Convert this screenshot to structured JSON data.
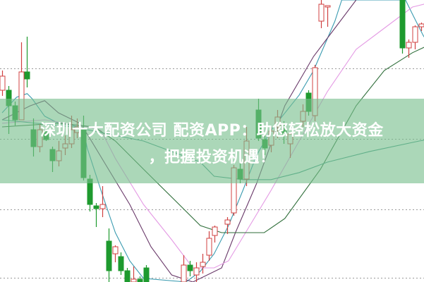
{
  "banner": {
    "line1": "深圳十大配资公司 配资APP：助您轻松放大资金",
    "line2": "，把握投资机遇！",
    "color": "#78be8c"
  },
  "chart_data": {
    "type": "candlestick",
    "title": "",
    "xlabel": "",
    "ylabel": "",
    "xlim": [
      0,
      68
    ],
    "ylim": [
      0,
      100
    ],
    "grid": "horizontal-dotted",
    "grid_levels": [
      25,
      50,
      75
    ],
    "up_color": "#d04040",
    "down_color": "#1e9a2e",
    "candles": [
      {
        "i": 0,
        "o": 68,
        "h": 75,
        "l": 66,
        "c": 73
      },
      {
        "i": 1,
        "o": 68,
        "h": 69.5,
        "l": 52.5,
        "c": 62.5
      },
      {
        "i": 2,
        "o": 62.5,
        "h": 64,
        "l": 55.5,
        "c": 57.5
      },
      {
        "i": 3,
        "o": 57.5,
        "h": 85,
        "l": 57.5,
        "c": 74.5
      },
      {
        "i": 4,
        "o": 74.5,
        "h": 87,
        "l": 69,
        "c": 72
      },
      {
        "i": 5,
        "o": 54,
        "h": 58,
        "l": 44.5,
        "c": 48
      },
      {
        "i": 6,
        "o": 48,
        "h": 56,
        "l": 46,
        "c": 54
      },
      {
        "i": 7,
        "o": 53,
        "h": 55,
        "l": 50,
        "c": 50.5
      },
      {
        "i": 8,
        "o": 47,
        "h": 48,
        "l": 39,
        "c": 43
      },
      {
        "i": 9,
        "o": 43,
        "h": 50,
        "l": 41,
        "c": 46.5
      },
      {
        "i": 10,
        "o": 47.5,
        "h": 52,
        "l": 45,
        "c": 49
      },
      {
        "i": 11,
        "o": 49,
        "h": 59,
        "l": 47.5,
        "c": 54
      },
      {
        "i": 12,
        "o": 53,
        "h": 58,
        "l": 51,
        "c": 55
      },
      {
        "i": 13,
        "o": 54,
        "h": 59,
        "l": 36,
        "c": 37
      },
      {
        "i": 14,
        "o": 36.5,
        "h": 38,
        "l": 25,
        "c": 27.5
      },
      {
        "i": 15,
        "o": 27,
        "h": 28,
        "l": 19.5,
        "c": 26
      },
      {
        "i": 16,
        "o": 26,
        "h": 34,
        "l": 23,
        "c": 27.5
      },
      {
        "i": 17,
        "o": 14.5,
        "h": 19,
        "l": 0,
        "c": 4
      },
      {
        "i": 18,
        "o": 10,
        "h": 13,
        "l": 7,
        "c": 12.5
      },
      {
        "i": 19,
        "o": 9,
        "h": 10.5,
        "l": 2.5,
        "c": 4
      },
      {
        "i": 20,
        "o": 4,
        "h": 5,
        "l": 0,
        "c": 0
      },
      {
        "i": 21,
        "o": 0,
        "h": 5.5,
        "l": 0,
        "c": 1
      },
      {
        "i": 22,
        "o": 1,
        "h": 2,
        "l": 0,
        "c": 0
      },
      {
        "i": 23,
        "o": 5,
        "h": 6,
        "l": 0,
        "c": 0
      },
      {
        "i": 29,
        "o": 0,
        "h": 9.5,
        "l": 0,
        "c": 6
      },
      {
        "i": 30,
        "o": 6,
        "h": 7.5,
        "l": 2,
        "c": 4
      },
      {
        "i": 31,
        "o": 2.5,
        "h": 7,
        "l": 0,
        "c": 5
      },
      {
        "i": 32,
        "o": 5.5,
        "h": 10,
        "l": 3,
        "c": 7
      },
      {
        "i": 33,
        "o": 9.5,
        "h": 18,
        "l": 7.5,
        "c": 15.5
      },
      {
        "i": 34,
        "o": 16.5,
        "h": 20,
        "l": 14,
        "c": 19.5
      },
      {
        "i": 36,
        "o": 20.5,
        "h": 23,
        "l": 17,
        "c": 22
      },
      {
        "i": 37,
        "o": 24.5,
        "h": 41.5,
        "l": 23.5,
        "c": 40.5
      },
      {
        "i": 38,
        "o": 40,
        "h": 43,
        "l": 35,
        "c": 36.5
      },
      {
        "i": 39,
        "o": 36.5,
        "h": 55,
        "l": 34,
        "c": 50
      },
      {
        "i": 41,
        "o": 61,
        "h": 65,
        "l": 50,
        "c": 51
      },
      {
        "i": 42,
        "o": 50.5,
        "h": 52,
        "l": 45,
        "c": 47.5
      },
      {
        "i": 43,
        "o": 48.5,
        "h": 55,
        "l": 46,
        "c": 53.5
      },
      {
        "i": 44,
        "o": 55,
        "h": 61,
        "l": 51,
        "c": 58.5
      },
      {
        "i": 45,
        "o": 54,
        "h": 57,
        "l": 49,
        "c": 52.5
      },
      {
        "i": 46,
        "o": 49,
        "h": 53,
        "l": 44,
        "c": 52.5
      },
      {
        "i": 48,
        "o": 57,
        "h": 63,
        "l": 55,
        "c": 60.5
      },
      {
        "i": 49,
        "o": 67,
        "h": 68,
        "l": 59,
        "c": 60.5
      },
      {
        "i": 50,
        "o": 59,
        "h": 77,
        "l": 57,
        "c": 76
      },
      {
        "i": 51,
        "o": 92.5,
        "h": 100,
        "l": 90,
        "c": 98.5
      },
      {
        "i": 52,
        "o": 97.5,
        "h": 98,
        "l": 90.5,
        "c": 98
      },
      {
        "i": 64,
        "o": 102,
        "h": 105,
        "l": 81,
        "c": 83
      },
      {
        "i": 65,
        "o": 83,
        "h": 86,
        "l": 79.5,
        "c": 85
      },
      {
        "i": 66,
        "o": 85,
        "h": 91,
        "l": 82.5,
        "c": 90.5
      },
      {
        "i": 67,
        "o": 90.5,
        "h": 92,
        "l": 89,
        "c": 91.5
      }
    ],
    "moving_averages": [
      {
        "color": "#3a9bb0",
        "points": [
          [
            0,
            60
          ],
          [
            2.3,
            65.5
          ],
          [
            4,
            66.8
          ],
          [
            4.8,
            65
          ],
          [
            6.8,
            58.8
          ],
          [
            9,
            56.3
          ],
          [
            11.3,
            55.5
          ],
          [
            13,
            54.3
          ],
          [
            13.6,
            47.5
          ],
          [
            15.8,
            32.5
          ],
          [
            18.1,
            17.5
          ],
          [
            20.4,
            7.5
          ],
          [
            22.6,
            1.3
          ],
          [
            29.4,
            0
          ],
          [
            31.7,
            3.8
          ],
          [
            33.9,
            10
          ],
          [
            36.2,
            20
          ],
          [
            38.5,
            32.5
          ],
          [
            40.7,
            45
          ],
          [
            43,
            53.8
          ],
          [
            47.5,
            66.3
          ],
          [
            49.8,
            75
          ],
          [
            53.2,
            92.5
          ],
          [
            54.3,
            100
          ],
          [
            64.5,
            100
          ],
          [
            65.6,
            95
          ],
          [
            67.3,
            87.5
          ],
          [
            68,
            85
          ]
        ]
      },
      {
        "color": "#6a3a6a",
        "points": [
          [
            0,
            57.5
          ],
          [
            4.5,
            62.5
          ],
          [
            6.8,
            64.3
          ],
          [
            9,
            60
          ],
          [
            12.4,
            56.3
          ],
          [
            13.6,
            52.5
          ],
          [
            17,
            40
          ],
          [
            20.4,
            27.5
          ],
          [
            23.8,
            12.5
          ],
          [
            27.1,
            2.5
          ],
          [
            30.5,
            0
          ],
          [
            35.1,
            5
          ],
          [
            37.3,
            17.5
          ],
          [
            40.7,
            35
          ],
          [
            45.2,
            62.5
          ],
          [
            49.8,
            80
          ],
          [
            53.2,
            90
          ],
          [
            56.6,
            100
          ]
        ]
      },
      {
        "color": "#e49ae4",
        "points": [
          [
            0,
            56.3
          ],
          [
            6.8,
            57.5
          ],
          [
            13.6,
            55
          ],
          [
            15.8,
            53.8
          ],
          [
            18.1,
            43.8
          ],
          [
            22.6,
            27.5
          ],
          [
            27.1,
            15
          ],
          [
            30.5,
            5
          ],
          [
            33.9,
            5
          ],
          [
            36.2,
            7.5
          ],
          [
            39.6,
            20
          ],
          [
            43,
            32.5
          ],
          [
            47.5,
            50
          ],
          [
            52,
            67.5
          ],
          [
            56.6,
            82.5
          ],
          [
            61.1,
            90
          ],
          [
            65.6,
            97.5
          ],
          [
            68,
            98.8
          ]
        ]
      },
      {
        "color": "#2f6e3a",
        "points": [
          [
            0,
            55
          ],
          [
            9,
            56.3
          ],
          [
            14.7,
            55
          ],
          [
            18.1,
            50
          ],
          [
            22.6,
            40
          ],
          [
            28.3,
            27.5
          ],
          [
            31.7,
            20
          ],
          [
            35.1,
            17.5
          ],
          [
            41.9,
            17.5
          ],
          [
            45.2,
            22.5
          ],
          [
            50.9,
            40
          ],
          [
            56.6,
            62.5
          ],
          [
            61.1,
            75
          ],
          [
            65.6,
            81.3
          ],
          [
            68,
            83.8
          ]
        ]
      },
      {
        "color": "#3f9a86",
        "points": [
          [
            0,
            57.5
          ],
          [
            11.3,
            55
          ],
          [
            22.6,
            50
          ],
          [
            31.7,
            42.5
          ],
          [
            33.9,
            37.5
          ],
          [
            38.5,
            36.3
          ],
          [
            43,
            36.3
          ],
          [
            47.5,
            38.8
          ],
          [
            52,
            42.5
          ],
          [
            58.8,
            46.3
          ],
          [
            66.7,
            50
          ],
          [
            68,
            50.5
          ]
        ]
      }
    ]
  }
}
